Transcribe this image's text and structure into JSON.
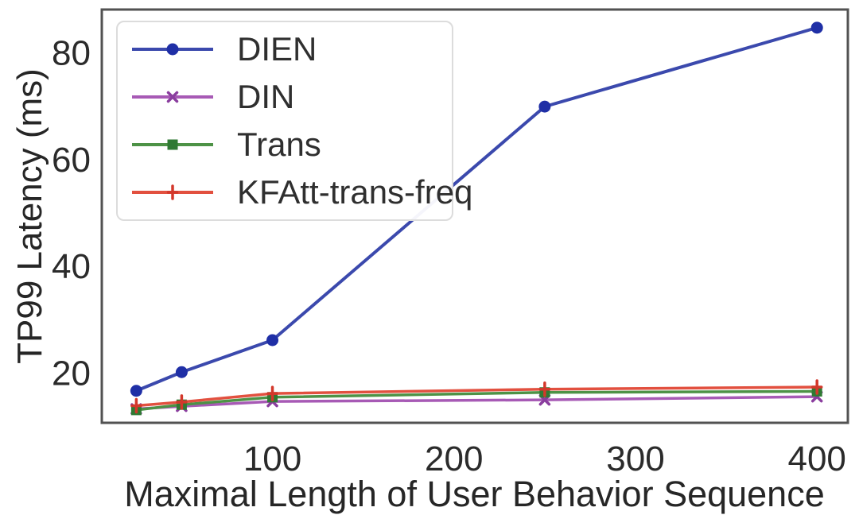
{
  "chart_data": {
    "type": "line",
    "title": "",
    "xlabel": "Maximal Length of User Behavior Sequence",
    "ylabel": "TP99 Latency (ms)",
    "x": [
      25,
      50,
      100,
      250,
      400
    ],
    "series": [
      {
        "name": "DIEN",
        "color": "#3b49ad",
        "marker_color": "#1f2fa6",
        "marker": "circle",
        "values": [
          16.5,
          20.0,
          26.0,
          69.8,
          84.6
        ]
      },
      {
        "name": "DIN",
        "color": "#a75ab5",
        "marker_color": "#8a3d9e",
        "marker": "x",
        "values": [
          13.1,
          13.6,
          14.5,
          14.8,
          15.4
        ]
      },
      {
        "name": "Trans",
        "color": "#4d9246",
        "marker_color": "#2f7a33",
        "marker": "square",
        "values": [
          12.9,
          13.9,
          15.3,
          16.2,
          16.4
        ]
      },
      {
        "name": "KFAtt-trans-freq",
        "color": "#e2503f",
        "marker_color": "#d3382b",
        "marker": "plus",
        "values": [
          13.7,
          14.4,
          16.0,
          16.8,
          17.2
        ]
      }
    ],
    "xticks": [
      100,
      200,
      300,
      400
    ],
    "yticks": [
      20,
      40,
      60,
      80
    ],
    "xlim": [
      6,
      417
    ],
    "ylim": [
      10.5,
      88
    ],
    "grid": false,
    "legend_position": "upper-left",
    "spine_color": "#525252",
    "text_color": "#2b2b2b"
  }
}
